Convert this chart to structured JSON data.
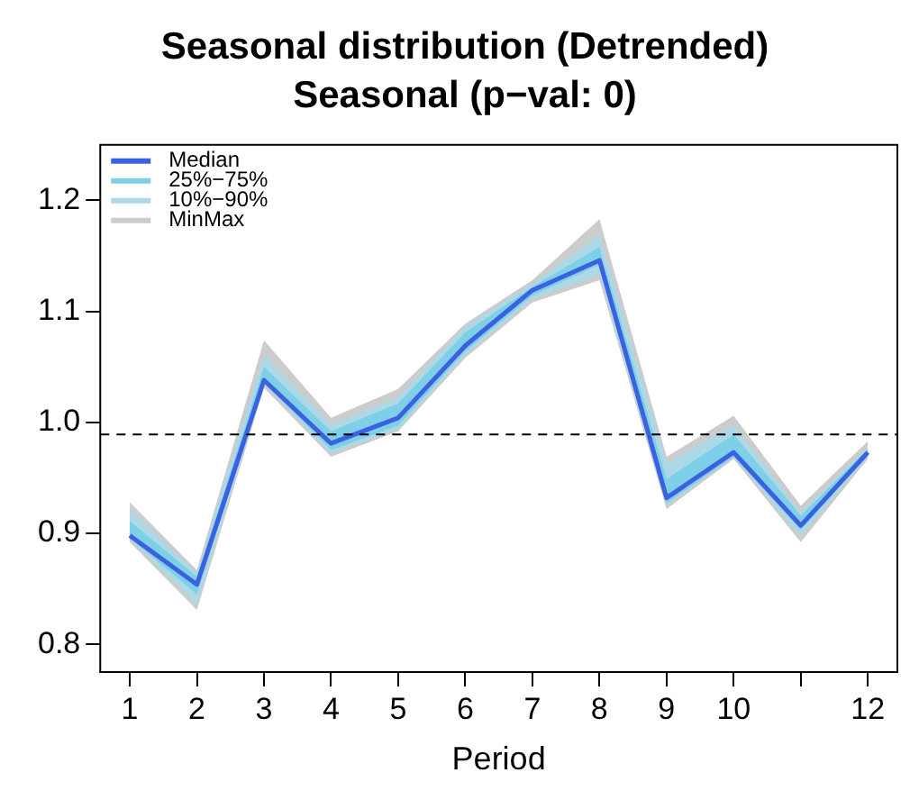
{
  "chart_data": {
    "type": "line",
    "title": "Seasonal distribution (Detrended)",
    "subtitle": "Seasonal (p−val: 0)",
    "xlabel": "Period",
    "x": [
      1,
      2,
      3,
      4,
      5,
      6,
      7,
      8,
      9,
      10,
      11,
      12
    ],
    "series": [
      {
        "name": "Median",
        "type": "line",
        "color": "#3a62e0",
        "values": [
          0.898,
          0.854,
          1.038,
          0.981,
          1.004,
          1.069,
          1.119,
          1.146,
          0.932,
          0.973,
          0.907,
          0.973
        ]
      },
      {
        "name": "25%−75%",
        "type": "area",
        "color": "#7ecfe8",
        "values": [
          null,
          null,
          null,
          null,
          null,
          null,
          null,
          null,
          null,
          null,
          null,
          null
        ],
        "lower": [
          0.896,
          0.845,
          1.036,
          0.975,
          0.997,
          1.064,
          1.114,
          1.142,
          0.927,
          0.969,
          0.903,
          0.97
        ],
        "upper": [
          0.911,
          0.861,
          1.05,
          0.992,
          1.017,
          1.081,
          1.122,
          1.158,
          0.949,
          0.989,
          0.916,
          0.976
        ]
      },
      {
        "name": "10%−90%",
        "type": "area",
        "color": "#add8e6",
        "values": [
          null,
          null,
          null,
          null,
          null,
          null,
          null,
          null,
          null,
          null,
          null,
          null
        ],
        "lower": [
          0.895,
          0.836,
          1.034,
          0.972,
          0.994,
          1.061,
          1.111,
          1.133,
          0.925,
          0.969,
          0.897,
          0.969
        ],
        "upper": [
          0.922,
          0.864,
          1.061,
          0.998,
          1.023,
          1.086,
          1.125,
          1.169,
          0.963,
          0.998,
          0.919,
          0.978
        ]
      },
      {
        "name": "MinMax",
        "type": "area",
        "color": "#cccccc",
        "values": [
          null,
          null,
          null,
          null,
          null,
          null,
          null,
          null,
          null,
          null,
          null,
          null
        ],
        "lower": [
          0.892,
          0.831,
          1.031,
          0.969,
          0.992,
          1.058,
          1.108,
          1.128,
          0.922,
          0.967,
          0.892,
          0.967
        ],
        "upper": [
          0.928,
          0.867,
          1.074,
          1.004,
          1.03,
          1.089,
          1.128,
          1.183,
          0.969,
          1.006,
          0.925,
          0.983
        ]
      }
    ],
    "xlim": [
      0.56,
      12.44
    ],
    "xticks": [
      1,
      2,
      3,
      4,
      5,
      6,
      7,
      8,
      9,
      10,
      {
        "value": 11,
        "label": null
      },
      12
    ],
    "ylim": [
      0.775,
      1.25
    ],
    "yticks": [
      {
        "value": 0.8,
        "label": "0.8"
      },
      {
        "value": 0.9,
        "label": "0.9"
      },
      {
        "value": 1.0,
        "label": "1.0"
      },
      {
        "value": 1.1,
        "label": "1.1"
      },
      {
        "value": 1.2,
        "label": "1.2"
      }
    ],
    "ref_lines": [
      {
        "axis": "y",
        "value": 0.989,
        "color": "#000000",
        "line_style": "dashed"
      }
    ],
    "legend": "top left",
    "grid": false,
    "marker": "none",
    "line_style": "solid"
  }
}
